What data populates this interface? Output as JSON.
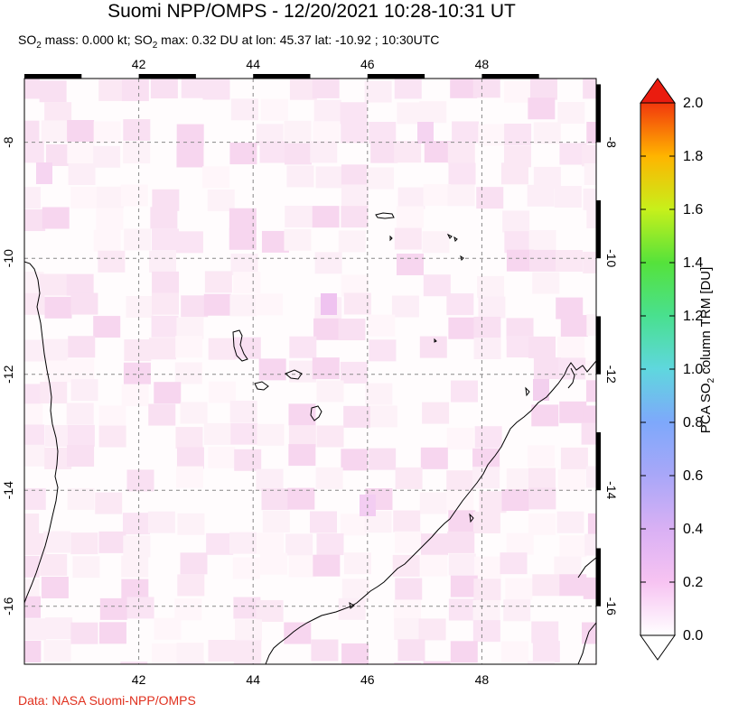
{
  "title": "Suomi NPP/OMPS - 12/20/2021 10:28-10:31 UT",
  "subtitle": {
    "part1": "SO",
    "sub1": "2",
    "part2": " mass: 0.000 kt; SO",
    "sub2": "2",
    "part3": " max: 0.32 DU at lon: 45.37 lat: -10.92 ; 10:30UTC"
  },
  "credit": "Data: NASA Suomi-NPP/OMPS",
  "map": {
    "lon_ticks": [
      "42",
      "44",
      "46",
      "48"
    ],
    "lat_ticks": [
      "-8",
      "-10",
      "-12",
      "-14",
      "-16"
    ],
    "lon_range": [
      40.0,
      50.0
    ],
    "lat_range": [
      -17.0,
      -6.9
    ],
    "grid": true
  },
  "colorbar": {
    "label_part1": "PCA SO",
    "label_sub": "2",
    "label_part2": " column TRM [DU]",
    "ticks": [
      "0.0",
      "0.2",
      "0.4",
      "0.6",
      "0.8",
      "1.0",
      "1.2",
      "1.4",
      "1.6",
      "1.8",
      "2.0"
    ],
    "range": [
      0.0,
      2.0
    ],
    "colors": [
      "#ffffff",
      "#f7c3f2",
      "#bfa6f6",
      "#7ea8fb",
      "#5fd7de",
      "#49e08f",
      "#55e23b",
      "#c7f01b",
      "#ffd200",
      "#ff7c10",
      "#ea1c0f"
    ]
  }
}
